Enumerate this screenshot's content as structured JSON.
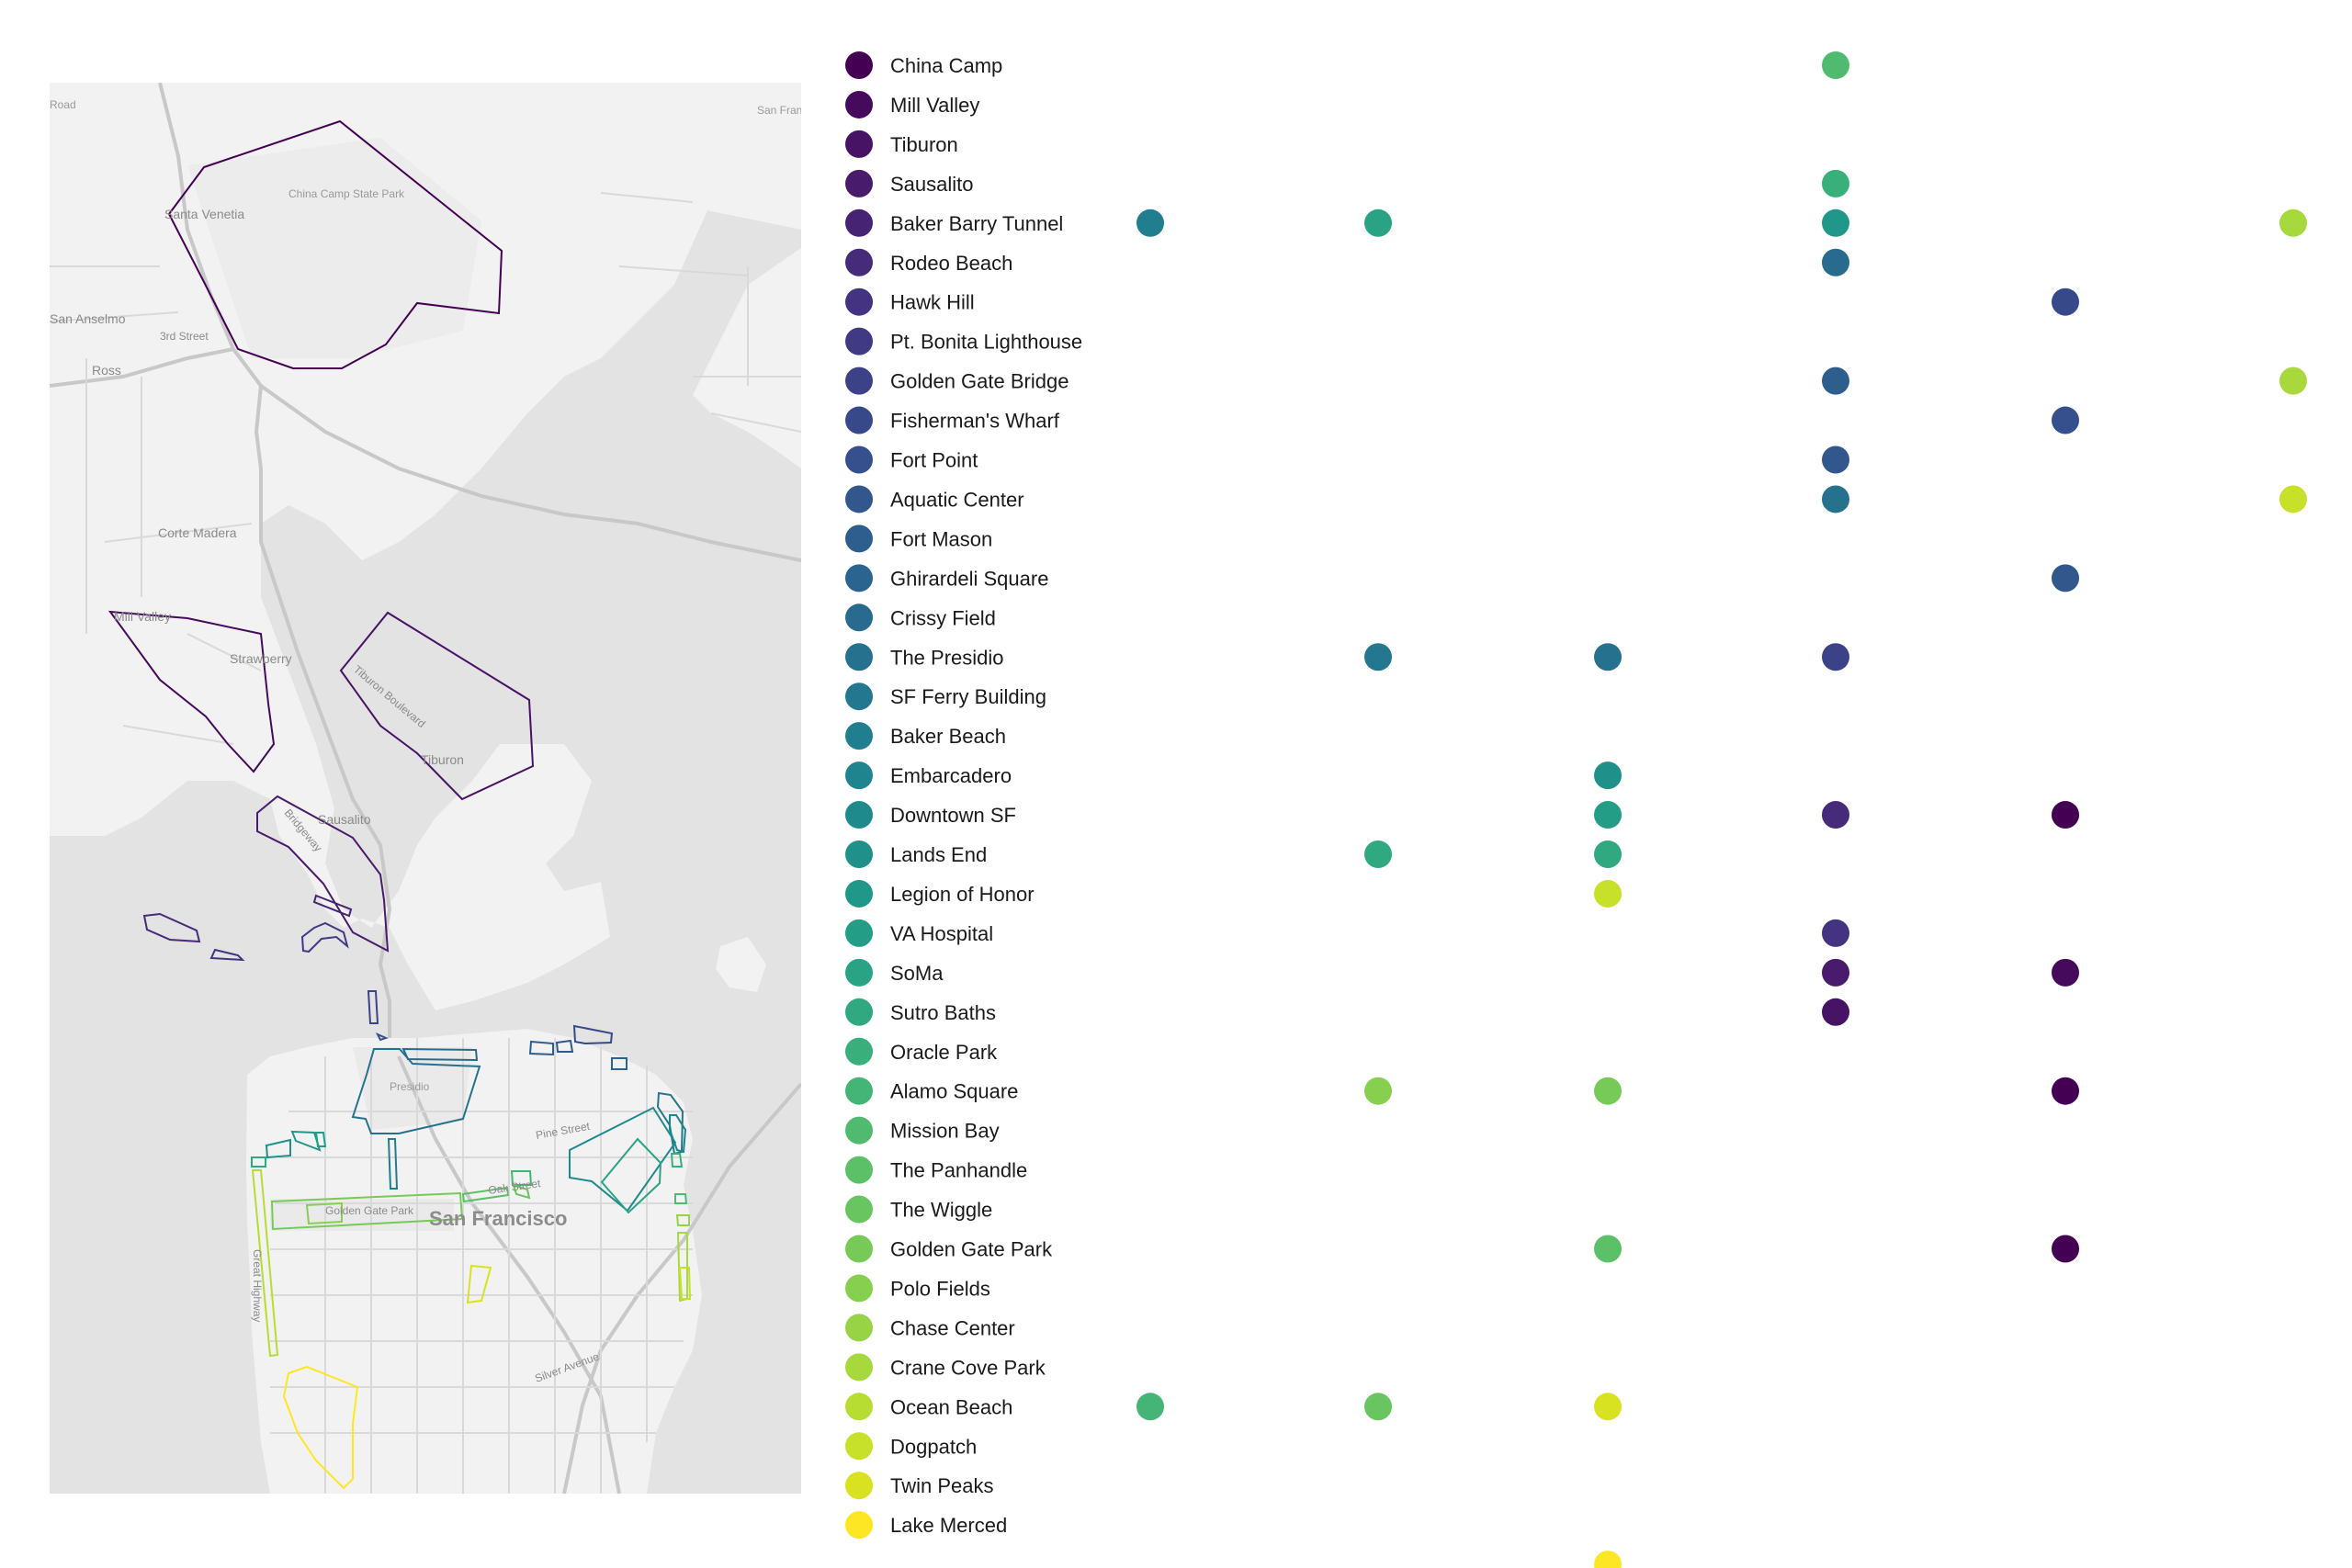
{
  "legend": [
    {
      "name": "China Camp",
      "color": "#440154"
    },
    {
      "name": "Mill Valley",
      "color": "#450a5c"
    },
    {
      "name": "Tiburon",
      "color": "#471365"
    },
    {
      "name": "Sausalito",
      "color": "#481b6d"
    },
    {
      "name": "Baker Barry Tunnel",
      "color": "#472374"
    },
    {
      "name": "Rodeo Beach",
      "color": "#462b7a"
    },
    {
      "name": "Hawk Hill",
      "color": "#433380"
    },
    {
      "name": "Pt. Bonita Lighthouse",
      "color": "#403a84"
    },
    {
      "name": "Golden Gate Bridge",
      "color": "#3c4287"
    },
    {
      "name": "Fisherman's Wharf",
      "color": "#38498a"
    },
    {
      "name": "Fort Point",
      "color": "#35508c"
    },
    {
      "name": "Aquatic Center",
      "color": "#31578d"
    },
    {
      "name": "Fort Mason",
      "color": "#2e5e8d"
    },
    {
      "name": "Ghirardeli Square",
      "color": "#2b648e"
    },
    {
      "name": "Crissy Field",
      "color": "#286b8e"
    },
    {
      "name": "The Presidio",
      "color": "#26718e"
    },
    {
      "name": "SF Ferry Building",
      "color": "#23778e"
    },
    {
      "name": "Baker Beach",
      "color": "#217e8e"
    },
    {
      "name": "Embarcadero",
      "color": "#1f848d"
    },
    {
      "name": "Downtown SF",
      "color": "#1e8a8c"
    },
    {
      "name": "Lands End",
      "color": "#1f908a"
    },
    {
      "name": "Legion of Honor",
      "color": "#21978a"
    },
    {
      "name": "VA Hospital",
      "color": "#249d87"
    },
    {
      "name": "SoMa",
      "color": "#29a384"
    },
    {
      "name": "Sutro Baths",
      "color": "#30a980"
    },
    {
      "name": "Oracle Park",
      "color": "#39af7b"
    },
    {
      "name": "Alamo Square",
      "color": "#44b576"
    },
    {
      "name": "Mission Bay",
      "color": "#50ba70"
    },
    {
      "name": "The Panhandle",
      "color": "#5cc068"
    },
    {
      "name": "The Wiggle",
      "color": "#69c560"
    },
    {
      "name": "Golden Gate Park",
      "color": "#78ca58"
    },
    {
      "name": "Polo Fields",
      "color": "#87cf4f"
    },
    {
      "name": "Chase Center",
      "color": "#97d345"
    },
    {
      "name": "Crane Cove Park",
      "color": "#a7d83c"
    },
    {
      "name": "Ocean Beach",
      "color": "#b7dc32"
    },
    {
      "name": "Dogpatch",
      "color": "#c7e029"
    },
    {
      "name": "Twin Peaks",
      "color": "#d8e220"
    },
    {
      "name": "Lake Merced",
      "color": "#fde725"
    }
  ],
  "map_labels": {
    "road_top_left": "Road",
    "sf_top_right": "San Francisco",
    "santa_venetia": "Santa Venetia",
    "china_camp_park": "China Camp State Park",
    "san_anselmo": "San Anselmo",
    "third_st": "3rd Street",
    "ross": "Ross",
    "corte_madera": "Corte Madera",
    "mill_valley": "Mill Valley",
    "strawberry": "Strawberry",
    "tiburon_blvd": "Tiburon Boulevard",
    "tiburon": "Tiburon",
    "bridgeway": "Bridgeway",
    "sausalito": "Sausalito",
    "presidio": "Presidio",
    "pine_street": "Pine Street",
    "oak_street": "Oak Street",
    "golden_gate_park": "Golden Gate Park",
    "san_francisco": "San Francisco",
    "great_highway": "Great Highway",
    "silver_avenue": "Silver Avenue"
  },
  "dots": [
    {
      "row": 0,
      "col": 4,
      "color": "#50ba70"
    },
    {
      "row": 3,
      "col": 4,
      "color": "#39af7b"
    },
    {
      "row": 4,
      "col": 1,
      "color": "#217e8e"
    },
    {
      "row": 4,
      "col": 2,
      "color": "#29a384"
    },
    {
      "row": 4,
      "col": 4,
      "color": "#21978a"
    },
    {
      "row": 4,
      "col": 6,
      "color": "#a7d83c"
    },
    {
      "row": 5,
      "col": 4,
      "color": "#286b8e"
    },
    {
      "row": 6,
      "col": 5,
      "color": "#38498a"
    },
    {
      "row": 8,
      "col": 4,
      "color": "#2e5e8d"
    },
    {
      "row": 8,
      "col": 6,
      "color": "#a7d83c"
    },
    {
      "row": 9,
      "col": 5,
      "color": "#35508c"
    },
    {
      "row": 10,
      "col": 4,
      "color": "#31578d"
    },
    {
      "row": 11,
      "col": 4,
      "color": "#26718e"
    },
    {
      "row": 11,
      "col": 6,
      "color": "#c7e029"
    },
    {
      "row": 13,
      "col": 5,
      "color": "#31578d"
    },
    {
      "row": 15,
      "col": 2,
      "color": "#23778e"
    },
    {
      "row": 15,
      "col": 3,
      "color": "#26718e"
    },
    {
      "row": 15,
      "col": 4,
      "color": "#3c4287"
    },
    {
      "row": 18,
      "col": 3,
      "color": "#1f908a"
    },
    {
      "row": 19,
      "col": 3,
      "color": "#249d87"
    },
    {
      "row": 19,
      "col": 4,
      "color": "#462b7a"
    },
    {
      "row": 19,
      "col": 5,
      "color": "#440154"
    },
    {
      "row": 20,
      "col": 2,
      "color": "#30a980"
    },
    {
      "row": 20,
      "col": 3,
      "color": "#30a980"
    },
    {
      "row": 21,
      "col": 3,
      "color": "#c7e029"
    },
    {
      "row": 22,
      "col": 4,
      "color": "#433380"
    },
    {
      "row": 23,
      "col": 4,
      "color": "#481b6d"
    },
    {
      "row": 23,
      "col": 5,
      "color": "#450a5c"
    },
    {
      "row": 24,
      "col": 4,
      "color": "#471365"
    },
    {
      "row": 26,
      "col": 2,
      "color": "#87cf4f"
    },
    {
      "row": 26,
      "col": 3,
      "color": "#78ca58"
    },
    {
      "row": 26,
      "col": 5,
      "color": "#440154"
    },
    {
      "row": 30,
      "col": 3,
      "color": "#5cc068"
    },
    {
      "row": 30,
      "col": 5,
      "color": "#440154"
    },
    {
      "row": 34,
      "col": 1,
      "color": "#44b576"
    },
    {
      "row": 34,
      "col": 2,
      "color": "#69c560"
    },
    {
      "row": 34,
      "col": 3,
      "color": "#d8e220"
    },
    {
      "row": 38,
      "col": 3,
      "color": "#fde725"
    }
  ]
}
